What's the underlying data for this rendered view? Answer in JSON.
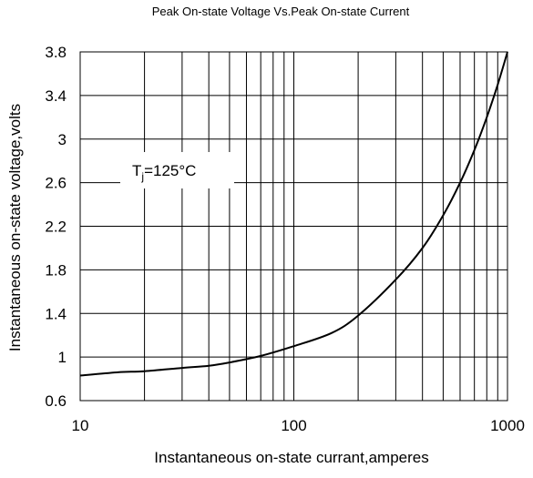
{
  "chart_data": {
    "type": "line",
    "title": "Peak On-state Voltage Vs.Peak On-state Current",
    "xlabel": "Instantaneous on-state currant,amperes",
    "ylabel": "Instantaneous on-state voltage,volts",
    "x_scale": "log",
    "xlim": [
      10,
      1000
    ],
    "ylim": [
      0.6,
      3.8
    ],
    "x_ticks": [
      10,
      100,
      1000
    ],
    "x_tick_labels": [
      "10",
      "100",
      "1000"
    ],
    "y_ticks": [
      0.6,
      1,
      1.4,
      1.8,
      2.2,
      2.6,
      3,
      3.4,
      3.8
    ],
    "y_tick_labels": [
      "0.6",
      "1",
      "1.4",
      "1.8",
      "2.2",
      "2.6",
      "3",
      "3.4",
      "3.8"
    ],
    "grid": true,
    "annotation": {
      "text": "T",
      "subscript": "j",
      "suffix": "=125°C"
    },
    "series": [
      {
        "x": [
          10,
          15,
          20,
          30,
          40,
          50,
          70,
          100,
          150,
          200,
          300,
          400,
          500,
          600,
          700,
          800,
          900,
          1000
        ],
        "y": [
          0.83,
          0.86,
          0.87,
          0.9,
          0.92,
          0.95,
          1.01,
          1.1,
          1.22,
          1.38,
          1.71,
          2.0,
          2.3,
          2.6,
          2.9,
          3.2,
          3.5,
          3.8
        ]
      }
    ]
  }
}
